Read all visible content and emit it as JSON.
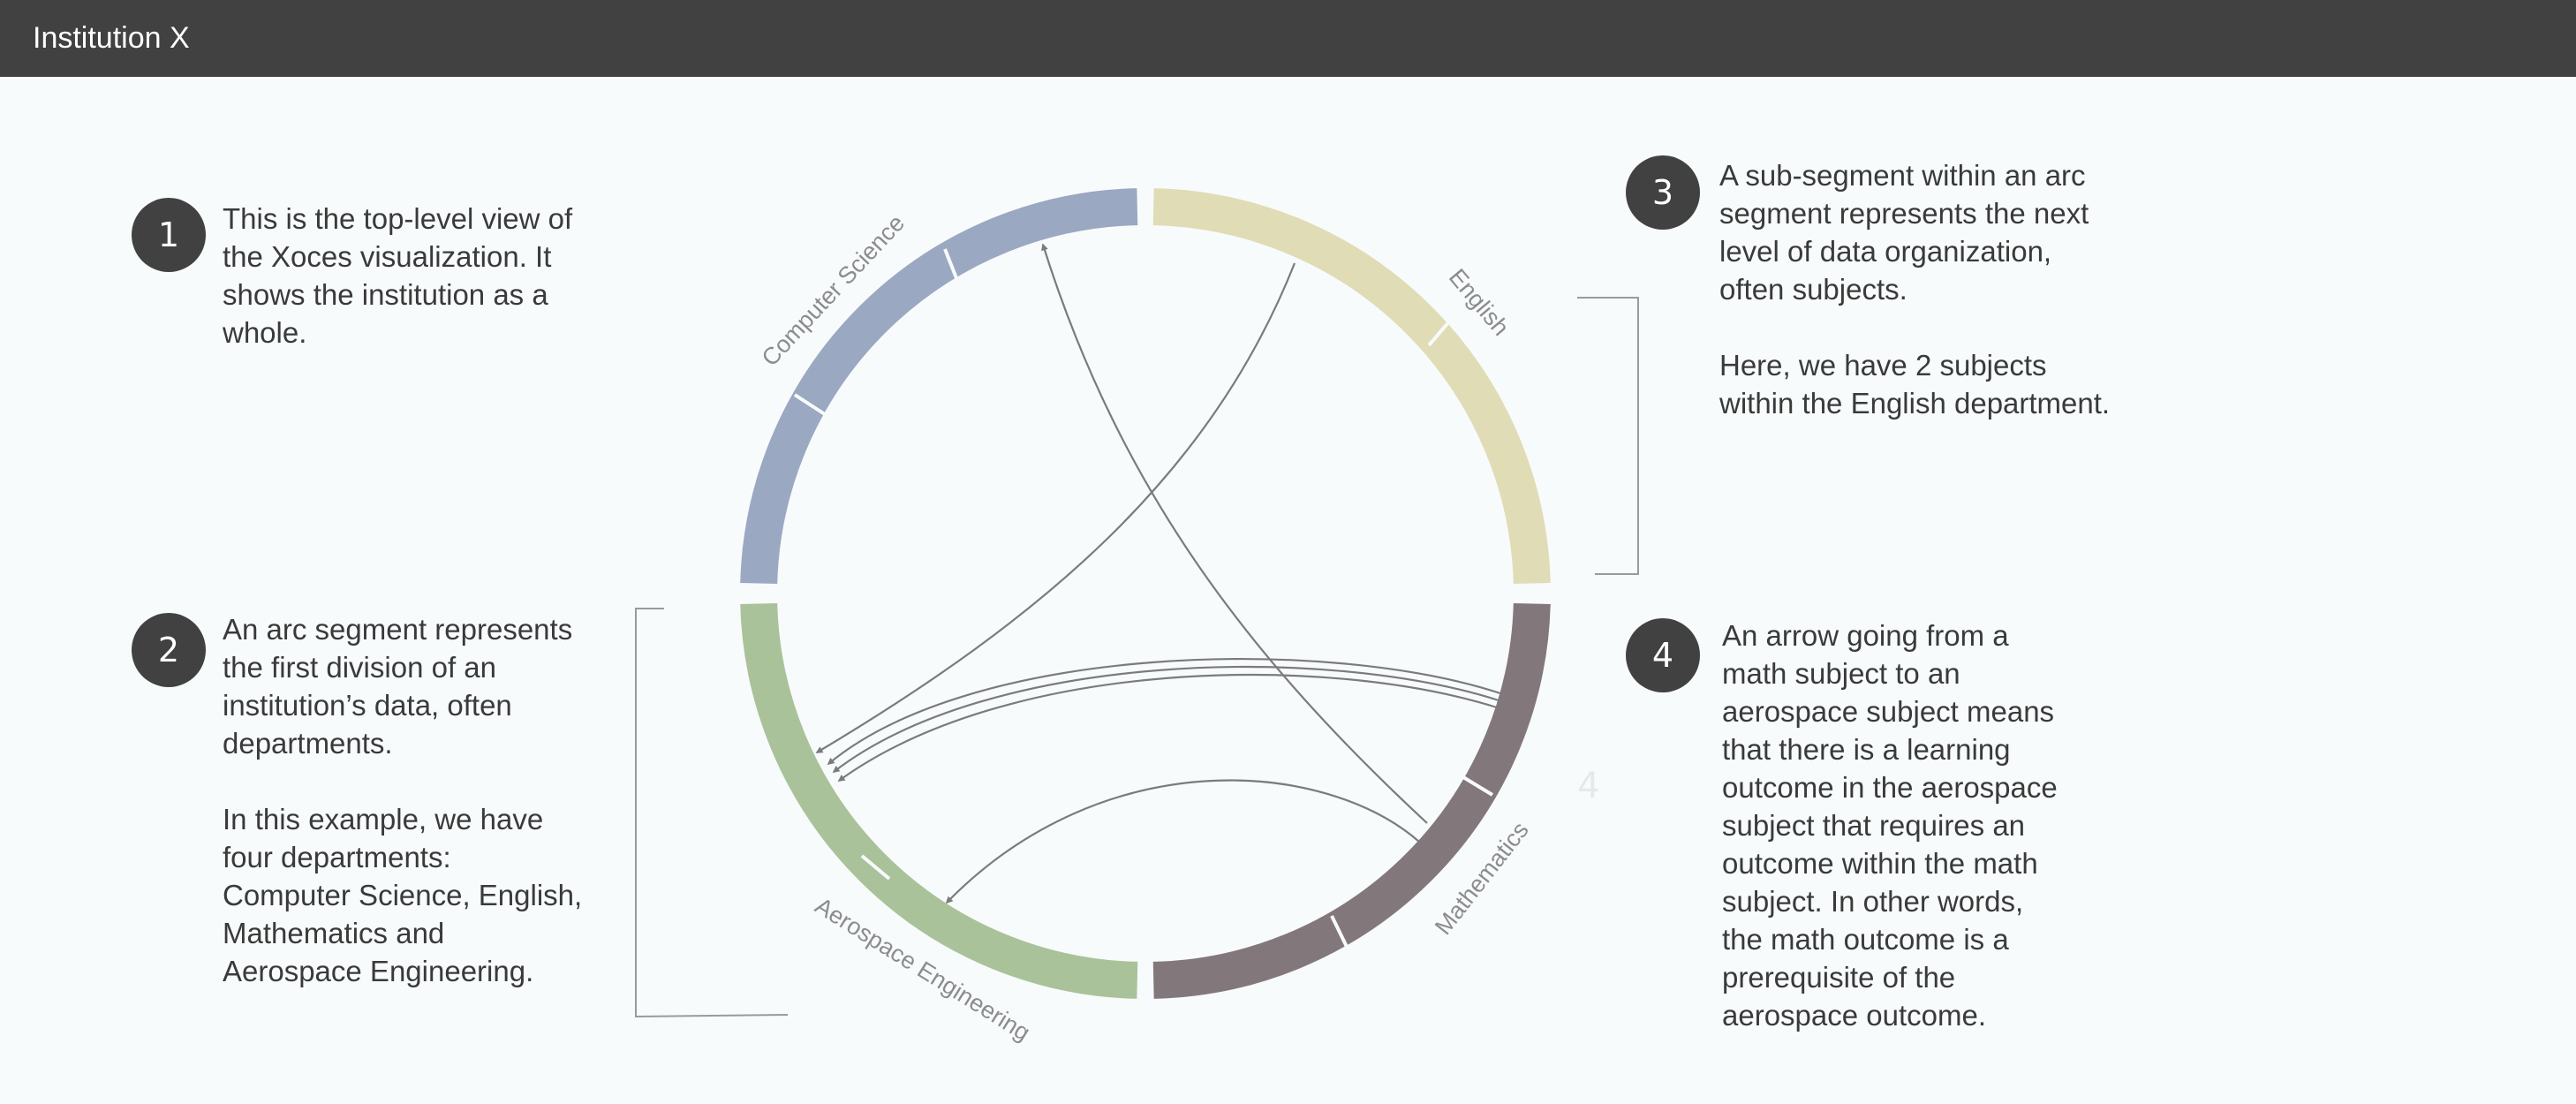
{
  "header": {
    "title": "Institution X"
  },
  "callouts": [
    {
      "number": "1",
      "lines": [
        "This is the top-level view of",
        "the Xoces visualization. It",
        "shows the institution as a",
        "whole."
      ],
      "lines2": []
    },
    {
      "number": "2",
      "lines": [
        "An arc segment represents",
        "the first division of an",
        "institution’s data, often",
        "departments."
      ],
      "lines2": [
        "In this example, we have",
        "four departments:",
        "Computer Science, English,",
        "Mathematics and",
        "Aerospace Engineering."
      ]
    },
    {
      "number": "3",
      "lines": [
        "A sub-segment within an arc",
        "segment represents the next",
        "level of data organization,",
        "often subjects."
      ],
      "lines2": [
        "Here, we have 2 subjects",
        "within the English department."
      ]
    },
    {
      "number": "4",
      "lines": [
        "An arrow going from a",
        "math subject to an",
        "aerospace subject means",
        "that there is a learning",
        "outcome in the aerospace",
        "subject that requires an",
        "outcome within the math",
        "subject. In other words,",
        "the math outcome is a",
        "prerequisite of the",
        "aerospace outcome."
      ],
      "lines2": []
    }
  ],
  "departments": [
    {
      "name": "Computer Science",
      "color": "#9ba8c2"
    },
    {
      "name": "English",
      "color": "#e0dcb6"
    },
    {
      "name": "Mathematics",
      "color": "#82787b"
    },
    {
      "name": "Aerospace Engineering",
      "color": "#a9c29a"
    }
  ],
  "faint_label": "4",
  "colors": {
    "bar": "#414141",
    "arrow": "#7b7b7b",
    "bracket": "#9a9a9a",
    "label": "#8c8c8c"
  }
}
